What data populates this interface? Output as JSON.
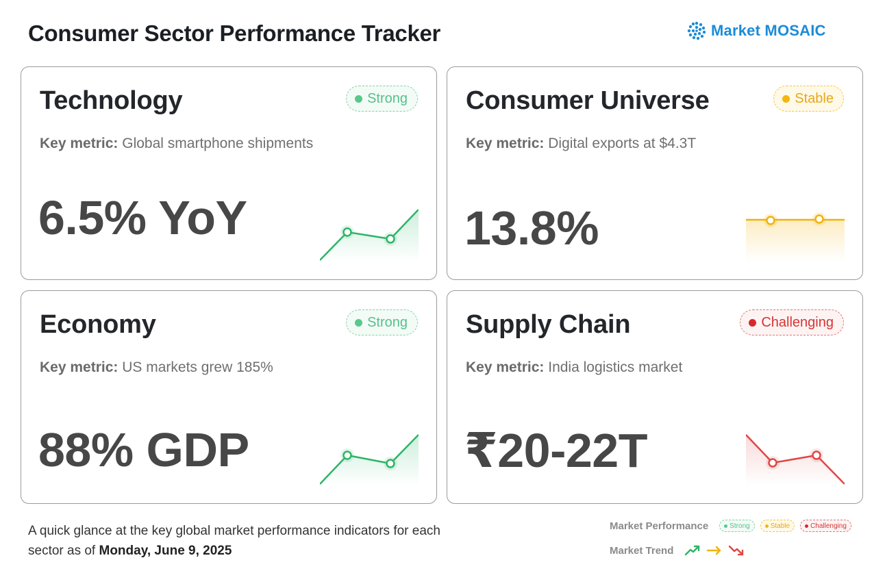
{
  "header": {
    "title": "Consumer Sector Performance Tracker",
    "brand_name": "Market MOSAIC",
    "brand_icon": "mosaic-dots-icon"
  },
  "colors": {
    "strong": "#57c98c",
    "stable": "#f3b60f",
    "challenging": "#d62a2a",
    "brand": "#1a8cd8"
  },
  "cards": [
    {
      "title": "Technology",
      "status": "Strong",
      "metric_label": "Key metric:",
      "metric_text": "Global smartphone shipments",
      "value": "6.5% YoY",
      "trend": "up"
    },
    {
      "title": "Consumer Universe",
      "status": "Stable",
      "metric_label": "Key metric:",
      "metric_text": "Digital exports at $4.3T",
      "value": "13.8%",
      "trend": "flat"
    },
    {
      "title": "Economy",
      "status": "Strong",
      "metric_label": "Key metric:",
      "metric_text": "US markets grew 185%",
      "value": "88% GDP",
      "trend": "up"
    },
    {
      "title": "Supply Chain",
      "status": "Challenging",
      "metric_label": "Key metric:",
      "metric_text": "India logistics market",
      "value": "₹20-22T",
      "trend": "down"
    }
  ],
  "footer": {
    "text_prefix": "A quick glance at the key global market performance indicators for each sector as of",
    "date": "Monday, June 9, 2025"
  },
  "legend": {
    "performance_label": "Market Performance",
    "performance_items": [
      "Strong",
      "Stable",
      "Challenging"
    ],
    "trend_label": "Market Trend",
    "trend_icons": [
      "trend-up-icon",
      "trend-flat-icon",
      "trend-down-icon"
    ]
  }
}
